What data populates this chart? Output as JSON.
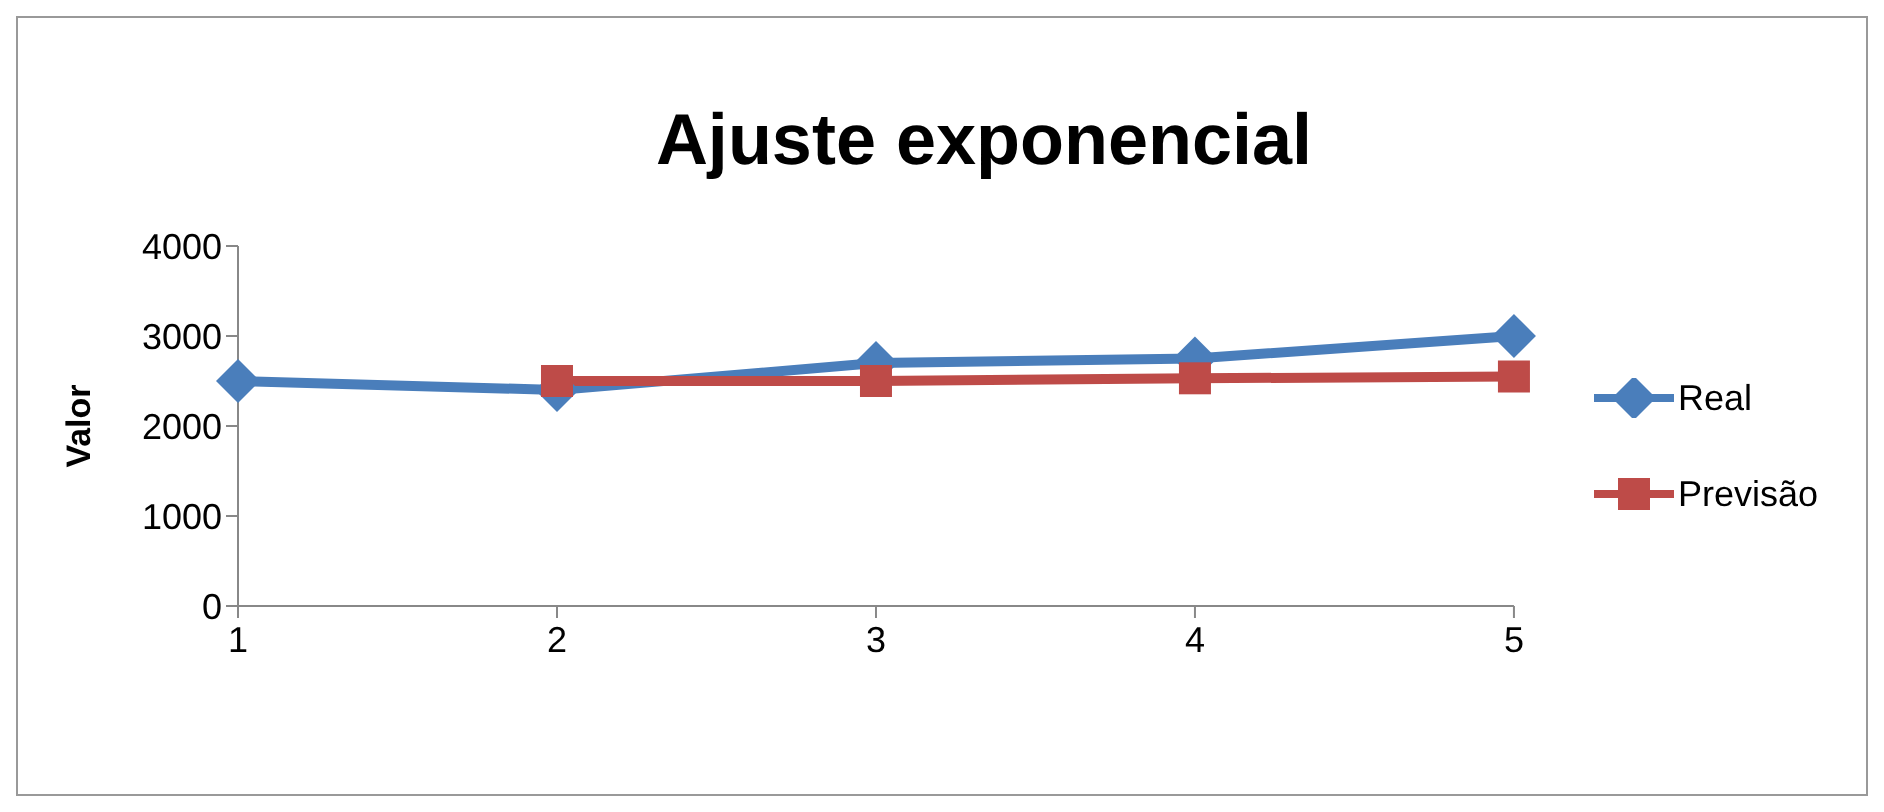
{
  "chart_data": {
    "type": "line",
    "title": "Ajuste exponencial",
    "ylabel": "Valor",
    "x": [
      1,
      2,
      3,
      4,
      5
    ],
    "xlim": [
      1,
      5
    ],
    "xticks": [
      1,
      2,
      3,
      4,
      5
    ],
    "ylim": [
      0,
      4000
    ],
    "yticks": [
      0,
      1000,
      2000,
      3000,
      4000
    ],
    "grid": false,
    "legend": "right",
    "line_style": "solid",
    "series": [
      {
        "name": "Real",
        "color": "#4a7ebb",
        "marker": "diamond",
        "values": [
          2500,
          2400,
          2700,
          2750,
          3000
        ]
      },
      {
        "name": "Previsão",
        "color": "#be4b48",
        "marker": "square",
        "values": [
          null,
          2500,
          2500,
          2530,
          2550
        ]
      }
    ]
  }
}
